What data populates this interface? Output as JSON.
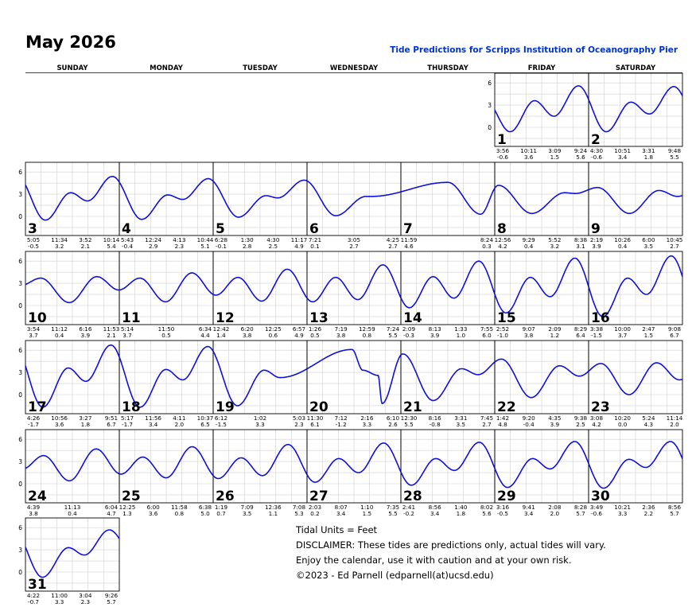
{
  "header": {
    "month_title": "May 2026",
    "subtitle": "Tide Predictions for Scripps Institution of Oceanography Pier"
  },
  "weekdays": [
    "SUNDAY",
    "MONDAY",
    "TUESDAY",
    "WEDNESDAY",
    "THURSDAY",
    "FRIDAY",
    "SATURDAY"
  ],
  "colors": {
    "curve": "#1010e0",
    "grid": "#d0d0d0",
    "border": "#000000",
    "subtitle": "#0033cc"
  },
  "chart_data": {
    "type": "line",
    "units": "Feet",
    "ylim": [
      -2,
      7
    ],
    "y_ticks": [
      0,
      3,
      6
    ],
    "grid": true,
    "first_weekday_index": 5,
    "days": [
      {
        "day": 1,
        "events": [
          {
            "time": "3:56",
            "height": -0.6
          },
          {
            "time": "10:11",
            "height": 3.6
          },
          {
            "time": "3:09",
            "height": 1.5
          },
          {
            "time": "9:24",
            "height": 5.6
          }
        ]
      },
      {
        "day": 2,
        "events": [
          {
            "time": "4:30",
            "height": -0.6
          },
          {
            "time": "10:51",
            "height": 3.4
          },
          {
            "time": "3:31",
            "height": 1.8
          },
          {
            "time": "9:48",
            "height": 5.5
          }
        ]
      },
      {
        "day": 3,
        "events": [
          {
            "time": "5:05",
            "height": -0.5
          },
          {
            "time": "11:34",
            "height": 3.2
          },
          {
            "time": "3:52",
            "height": 2.1
          },
          {
            "time": "10:14",
            "height": 5.4
          }
        ]
      },
      {
        "day": 4,
        "events": [
          {
            "time": "5:43",
            "height": -0.4
          },
          {
            "time": "12:24",
            "height": 2.9
          },
          {
            "time": "4:13",
            "height": 2.3
          },
          {
            "time": "10:44",
            "height": 5.1
          }
        ]
      },
      {
        "day": 5,
        "events": [
          {
            "time": "6:28",
            "height": -0.1
          },
          {
            "time": "1:30",
            "height": 2.8
          },
          {
            "time": "4:30",
            "height": 2.5
          },
          {
            "time": "11:17",
            "height": 4.9
          }
        ]
      },
      {
        "day": 6,
        "events": [
          {
            "time": "7:21",
            "height": 0.1
          },
          {
            "time": "3:05",
            "height": 2.7
          },
          {
            "time": "4:25",
            "height": 2.7
          }
        ]
      },
      {
        "day": 7,
        "events": [
          {
            "time": "11:59",
            "height": 4.6
          },
          {
            "time": "8:24",
            "height": 0.3
          }
        ]
      },
      {
        "day": 8,
        "events": [
          {
            "time": "12:56",
            "height": 4.2
          },
          {
            "time": "9:29",
            "height": 0.4
          },
          {
            "time": "5:52",
            "height": 3.2
          },
          {
            "time": "8:38",
            "height": 3.1
          }
        ]
      },
      {
        "day": 9,
        "events": [
          {
            "time": "2:19",
            "height": 3.9
          },
          {
            "time": "10:26",
            "height": 0.4
          },
          {
            "time": "6:00",
            "height": 3.5
          },
          {
            "time": "10:45",
            "height": 2.7
          }
        ]
      },
      {
        "day": 10,
        "events": [
          {
            "time": "3:54",
            "height": 3.7
          },
          {
            "time": "11:12",
            "height": 0.4
          },
          {
            "time": "6:16",
            "height": 3.9
          },
          {
            "time": "11:53",
            "height": 2.1
          }
        ]
      },
      {
        "day": 11,
        "events": [
          {
            "time": "5:14",
            "height": 3.7
          },
          {
            "time": "11:50",
            "height": 0.5
          },
          {
            "time": "6:34",
            "height": 4.4
          }
        ]
      },
      {
        "day": 12,
        "events": [
          {
            "time": "12:42",
            "height": 1.4
          },
          {
            "time": "6:20",
            "height": 3.8
          },
          {
            "time": "12:25",
            "height": 0.6
          },
          {
            "time": "6:57",
            "height": 4.9
          }
        ]
      },
      {
        "day": 13,
        "events": [
          {
            "time": "1:26",
            "height": 0.5
          },
          {
            "time": "7:19",
            "height": 3.8
          },
          {
            "time": "12:59",
            "height": 0.8
          },
          {
            "time": "7:24",
            "height": 5.5
          }
        ]
      },
      {
        "day": 14,
        "events": [
          {
            "time": "2:09",
            "height": -0.3
          },
          {
            "time": "8:13",
            "height": 3.9
          },
          {
            "time": "1:33",
            "height": 1.0
          },
          {
            "time": "7:55",
            "height": 6.0
          }
        ]
      },
      {
        "day": 15,
        "events": [
          {
            "time": "2:52",
            "height": -1.0
          },
          {
            "time": "9:07",
            "height": 3.8
          },
          {
            "time": "2:09",
            "height": 1.2
          },
          {
            "time": "8:29",
            "height": 6.4
          }
        ]
      },
      {
        "day": 16,
        "events": [
          {
            "time": "3:38",
            "height": -1.5
          },
          {
            "time": "10:00",
            "height": 3.7
          },
          {
            "time": "2:47",
            "height": 1.5
          },
          {
            "time": "9:08",
            "height": 6.7
          }
        ]
      },
      {
        "day": 17,
        "events": [
          {
            "time": "4:26",
            "height": -1.7
          },
          {
            "time": "10:56",
            "height": 3.6
          },
          {
            "time": "3:27",
            "height": 1.8
          },
          {
            "time": "9:51",
            "height": 6.7
          }
        ]
      },
      {
        "day": 18,
        "events": [
          {
            "time": "5:17",
            "height": -1.7
          },
          {
            "time": "11:56",
            "height": 3.4
          },
          {
            "time": "4:11",
            "height": 2.0
          },
          {
            "time": "10:37",
            "height": 6.5
          }
        ]
      },
      {
        "day": 19,
        "events": [
          {
            "time": "6:12",
            "height": -1.5
          },
          {
            "time": "1:02",
            "height": 3.3
          },
          {
            "time": "5:03",
            "height": 2.3
          }
        ]
      },
      {
        "day": 20,
        "events": [
          {
            "time": "11:30",
            "height": 6.1
          },
          {
            "time": "7:12",
            "height": -1.2
          },
          {
            "time": "2:16",
            "height": 3.3
          },
          {
            "time": "6:10",
            "height": 2.6
          }
        ]
      },
      {
        "day": 21,
        "events": [
          {
            "time": "12:30",
            "height": 5.5
          },
          {
            "time": "8:16",
            "height": -0.8
          },
          {
            "time": "3:31",
            "height": 3.5
          },
          {
            "time": "7:45",
            "height": 2.7
          }
        ]
      },
      {
        "day": 22,
        "events": [
          {
            "time": "1:42",
            "height": 4.8
          },
          {
            "time": "9:20",
            "height": -0.4
          },
          {
            "time": "4:35",
            "height": 3.9
          },
          {
            "time": "9:38",
            "height": 2.5
          }
        ]
      },
      {
        "day": 23,
        "events": [
          {
            "time": "3:08",
            "height": 4.2
          },
          {
            "time": "10:20",
            "height": 0.0
          },
          {
            "time": "5:24",
            "height": 4.3
          },
          {
            "time": "11:14",
            "height": 2.0
          }
        ]
      },
      {
        "day": 24,
        "events": [
          {
            "time": "4:39",
            "height": 3.8
          },
          {
            "time": "11:13",
            "height": 0.4
          },
          {
            "time": "6:04",
            "height": 4.7
          }
        ]
      },
      {
        "day": 25,
        "events": [
          {
            "time": "12:25",
            "height": 1.3
          },
          {
            "time": "6:00",
            "height": 3.6
          },
          {
            "time": "11:58",
            "height": 0.8
          },
          {
            "time": "6:38",
            "height": 5.0
          }
        ]
      },
      {
        "day": 26,
        "events": [
          {
            "time": "1:19",
            "height": 0.7
          },
          {
            "time": "7:09",
            "height": 3.5
          },
          {
            "time": "12:36",
            "height": 1.1
          },
          {
            "time": "7:08",
            "height": 5.3
          }
        ]
      },
      {
        "day": 27,
        "events": [
          {
            "time": "2:03",
            "height": 0.2
          },
          {
            "time": "8:07",
            "height": 3.4
          },
          {
            "time": "1:10",
            "height": 1.5
          },
          {
            "time": "7:35",
            "height": 5.5
          }
        ]
      },
      {
        "day": 28,
        "events": [
          {
            "time": "2:41",
            "height": -0.2
          },
          {
            "time": "8:56",
            "height": 3.4
          },
          {
            "time": "1:40",
            "height": 1.8
          },
          {
            "time": "8:02",
            "height": 5.6
          }
        ]
      },
      {
        "day": 29,
        "events": [
          {
            "time": "3:16",
            "height": -0.5
          },
          {
            "time": "9:41",
            "height": 3.4
          },
          {
            "time": "2:08",
            "height": 2.0
          },
          {
            "time": "8:28",
            "height": 5.7
          }
        ]
      },
      {
        "day": 30,
        "events": [
          {
            "time": "3:49",
            "height": -0.6
          },
          {
            "time": "10:21",
            "height": 3.3
          },
          {
            "time": "2:36",
            "height": 2.2
          },
          {
            "time": "8:56",
            "height": 5.7
          }
        ]
      },
      {
        "day": 31,
        "events": [
          {
            "time": "4:22",
            "height": -0.7
          },
          {
            "time": "11:00",
            "height": 3.3
          },
          {
            "time": "3:04",
            "height": 2.3
          },
          {
            "time": "9:26",
            "height": 5.7
          }
        ]
      }
    ]
  },
  "notes": {
    "units": "Tidal Units = Feet",
    "disclaimer": "DISCLAIMER: These tides are predictions only, actual tides will vary.",
    "enjoy": "Enjoy the calendar, use it with caution and at your own risk.",
    "copyright": "©2023 - Ed Parnell (edparnell(at)ucsd.edu)"
  }
}
